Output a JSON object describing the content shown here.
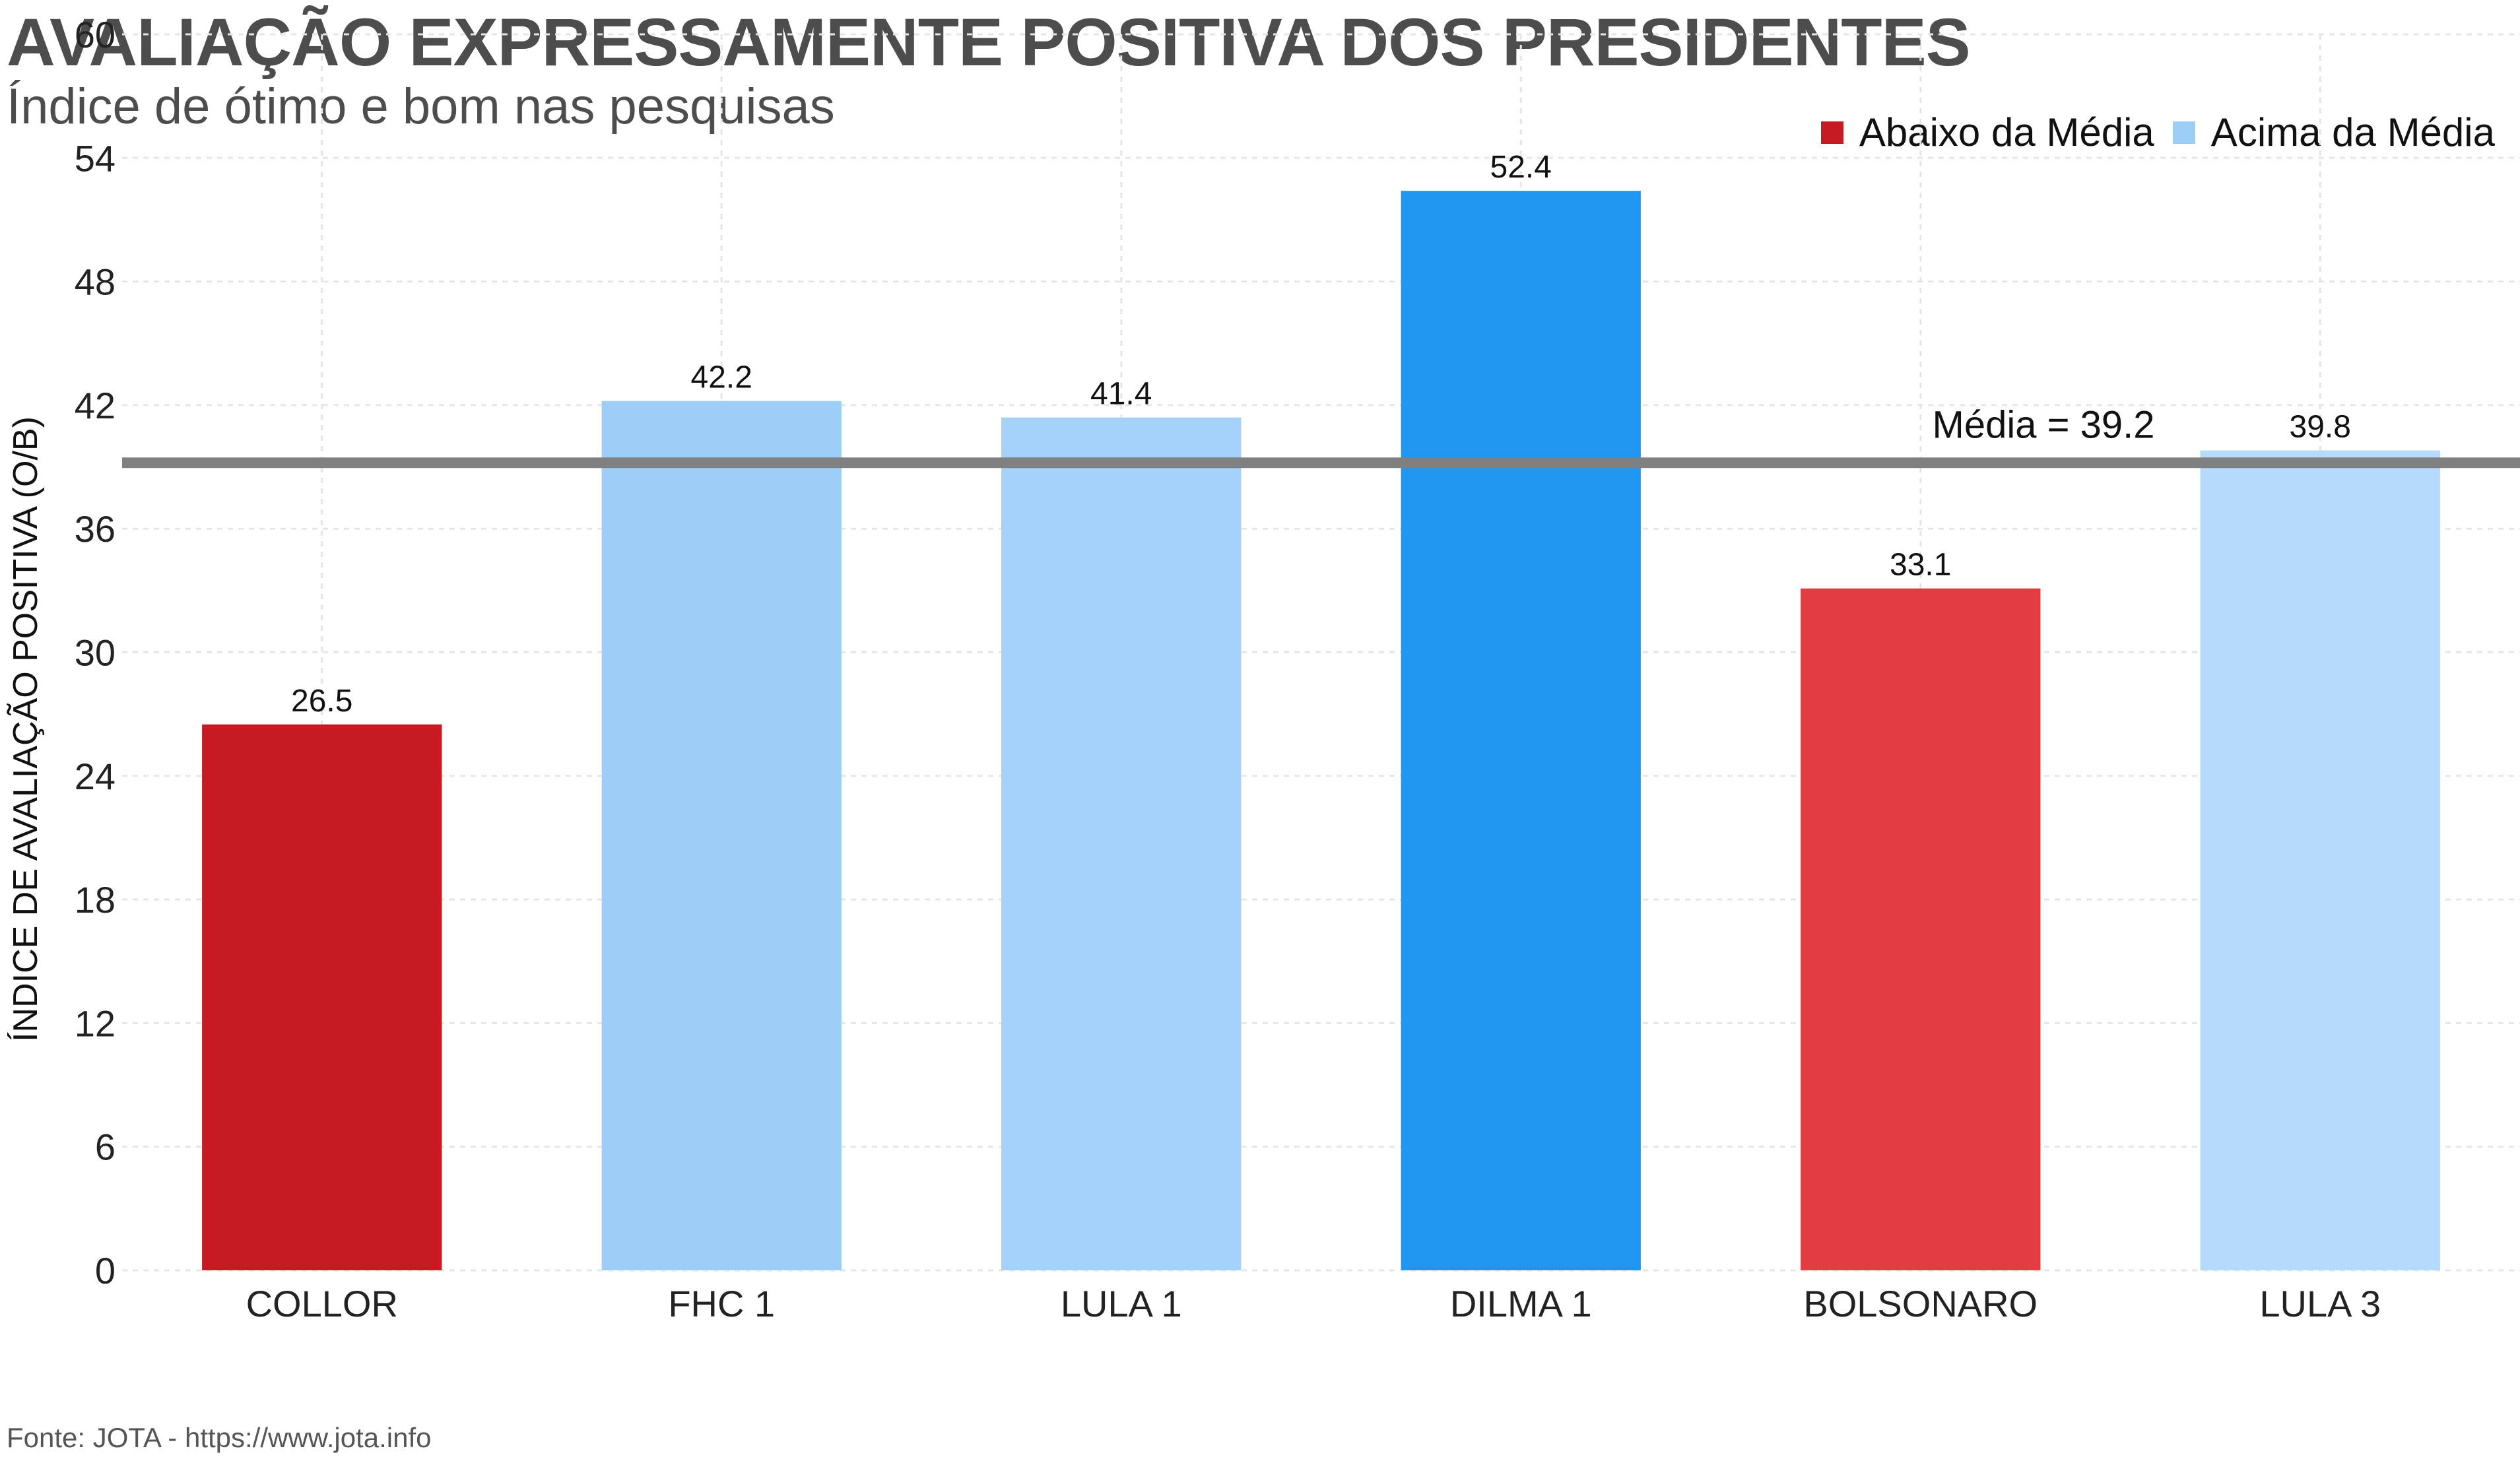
{
  "chart_data": {
    "type": "bar",
    "title": "AVALIAÇÃO EXPRESSAMENTE POSITIVA DOS PRESIDENTES",
    "subtitle": "Índice de ótimo e bom nas pesquisas",
    "ylabel": "ÍNDICE DE AVALIAÇÃO POSITIVA (O/B)",
    "xlabel": "",
    "categories": [
      "COLLOR",
      "FHC 1",
      "LULA 1",
      "DILMA 1",
      "BOLSONARO",
      "LULA 3"
    ],
    "values": [
      26.5,
      42.2,
      41.4,
      52.4,
      33.1,
      39.8
    ],
    "value_labels": [
      "26.5",
      "42.2",
      "41.4",
      "52.4",
      "33.1",
      "39.8"
    ],
    "bar_colors": [
      "#c71b24",
      "#9ccef7",
      "#a3d1f8",
      "#2196f0",
      "#e23c43",
      "#b5dafa"
    ],
    "ylim": [
      0,
      60
    ],
    "yticks": [
      "0",
      "6",
      "12",
      "18",
      "24",
      "30",
      "36",
      "42",
      "48",
      "54",
      "60"
    ],
    "grid": true,
    "legend_position": "top-right",
    "legend": [
      {
        "label": "Abaixo da Média",
        "color": "#c71b24"
      },
      {
        "label": "Acima da Média",
        "color": "#9ccef7"
      }
    ],
    "reference_line": {
      "value": 39.2,
      "label": "Média = 39.2",
      "color": "#808080"
    },
    "caption": "Fonte: JOTA - https://www.jota.info"
  }
}
